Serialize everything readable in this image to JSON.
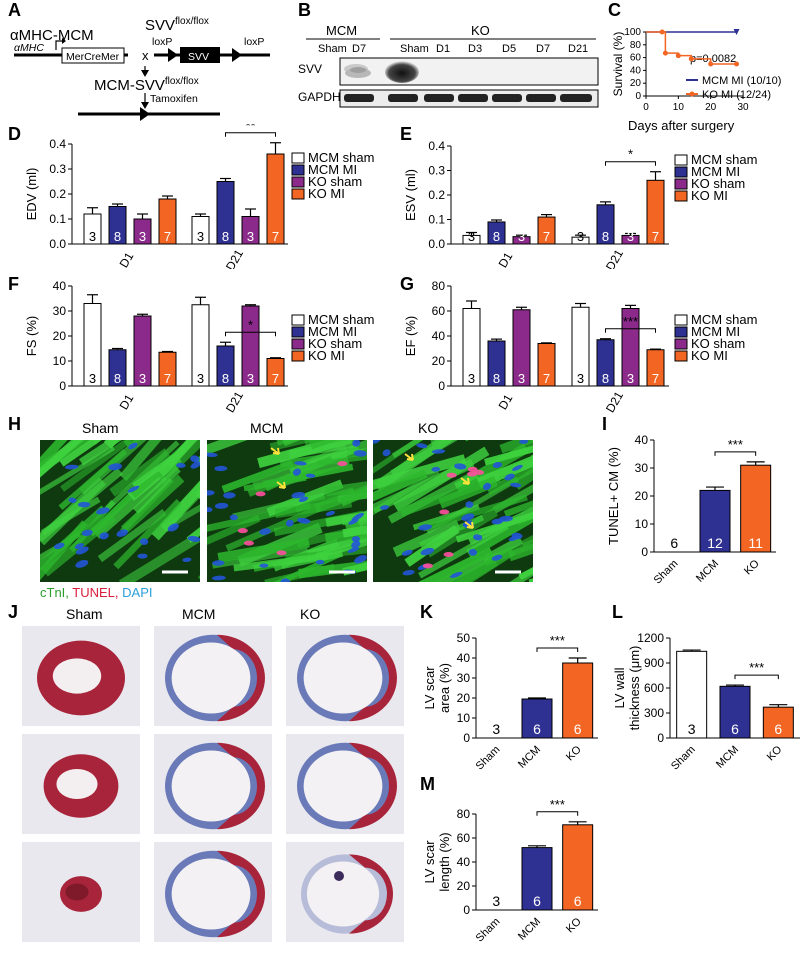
{
  "figure": {
    "panel_labels": [
      "A",
      "B",
      "C",
      "D",
      "E",
      "F",
      "G",
      "H",
      "I",
      "J",
      "K",
      "L",
      "M"
    ],
    "colors": {
      "mcm_sham": "#ffffff",
      "mcm_mi": "#2e3192",
      "ko_sham": "#8b2a8b",
      "ko_mi": "#f26522",
      "cardiac_green": "#2db82d",
      "tunel_red": "#e8224a",
      "dapi_blue": "#2255d8",
      "tissue_red": "#a8243a",
      "scar_blue": "#6a7ab8"
    }
  },
  "panelA": {
    "title": "αMHC-MCM",
    "promoter": "αMHC",
    "gene": "MerCreMer",
    "allele": "SVV",
    "allele_sup": "flox/flox",
    "cross": "x",
    "loxp_left": "loxP",
    "loxp_right": "loxP",
    "box": "SVV",
    "result": "MCM-SVV",
    "result_sup": "flox/flox",
    "drug": "Tamoxifen"
  },
  "panelB": {
    "group_mcm": "MCM",
    "group_ko": "KO",
    "lanes": [
      "Sham",
      "D7",
      "Sham",
      "D1",
      "D3",
      "D5",
      "D7",
      "D21"
    ],
    "rows": [
      "SVV",
      "GAPDH"
    ]
  },
  "panelC": {
    "ylabel": "Survival (%)",
    "xlabel": "Days after surgery",
    "yticks": [
      "0",
      "20",
      "40",
      "60",
      "80",
      "100"
    ],
    "xticks": [
      "0",
      "10",
      "20",
      "30"
    ],
    "pvalue": "p=0.0082",
    "legend": [
      "MCM MI (10/10)",
      "KO MI (12/24)"
    ]
  },
  "legend_groups": [
    "MCM sham",
    "MCM MI",
    "KO sham",
    "KO MI"
  ],
  "chart_data": [
    {
      "id": "D",
      "type": "bar",
      "ylabel": "EDV (ml)",
      "ylim": [
        0,
        0.4
      ],
      "yticks": [
        "0.0",
        "0.1",
        "0.2",
        "0.3",
        "0.4"
      ],
      "ytick_values": [
        0,
        0.1,
        0.2,
        0.3,
        0.4
      ],
      "categories": [
        "D1",
        "D21"
      ],
      "sig": "**",
      "sig_between": [
        1,
        3
      ],
      "series": [
        {
          "name": "MCM sham",
          "values": [
            0.12,
            0.11
          ],
          "err": [
            0.025,
            0.01
          ],
          "n": [
            "3",
            "3"
          ]
        },
        {
          "name": "MCM MI",
          "values": [
            0.15,
            0.25
          ],
          "err": [
            0.01,
            0.012
          ],
          "n": [
            "8",
            "8"
          ]
        },
        {
          "name": "KO sham",
          "values": [
            0.1,
            0.11
          ],
          "err": [
            0.02,
            0.03
          ],
          "n": [
            "3",
            "3"
          ]
        },
        {
          "name": "KO MI",
          "values": [
            0.18,
            0.36
          ],
          "err": [
            0.012,
            0.045
          ],
          "n": [
            "7",
            "7"
          ]
        }
      ]
    },
    {
      "id": "E",
      "type": "bar",
      "ylabel": "ESV (ml)",
      "ylim": [
        0,
        0.4
      ],
      "yticks": [
        "0.0",
        "0.1",
        "0.2",
        "0.3",
        "0.4"
      ],
      "ytick_values": [
        0,
        0.1,
        0.2,
        0.3,
        0.4
      ],
      "categories": [
        "D1",
        "D21"
      ],
      "sig": "*",
      "sig_between": [
        1,
        3
      ],
      "series": [
        {
          "name": "MCM sham",
          "values": [
            0.035,
            0.028
          ],
          "err": [
            0.012,
            0.008
          ],
          "n": [
            "3",
            "3"
          ]
        },
        {
          "name": "MCM MI",
          "values": [
            0.09,
            0.16
          ],
          "err": [
            0.008,
            0.012
          ],
          "n": [
            "8",
            "8"
          ]
        },
        {
          "name": "KO sham",
          "values": [
            0.03,
            0.035
          ],
          "err": [
            0.006,
            0.008
          ],
          "n": [
            "3",
            "3"
          ]
        },
        {
          "name": "KO MI",
          "values": [
            0.11,
            0.26
          ],
          "err": [
            0.01,
            0.035
          ],
          "n": [
            "7",
            "7"
          ]
        }
      ]
    },
    {
      "id": "F",
      "type": "bar",
      "ylabel": "FS (%)",
      "ylim": [
        0,
        40
      ],
      "yticks": [
        "0",
        "10",
        "20",
        "30",
        "40"
      ],
      "ytick_values": [
        0,
        10,
        20,
        30,
        40
      ],
      "categories": [
        "D1",
        "D21"
      ],
      "sig": "*",
      "sig_between": [
        1,
        3
      ],
      "series": [
        {
          "name": "MCM sham",
          "values": [
            33,
            32.5
          ],
          "err": [
            3.5,
            3
          ],
          "n": [
            "3",
            "3"
          ]
        },
        {
          "name": "MCM MI",
          "values": [
            14.5,
            16
          ],
          "err": [
            0.5,
            1.5
          ],
          "n": [
            "8",
            "8"
          ]
        },
        {
          "name": "KO sham",
          "values": [
            28,
            32
          ],
          "err": [
            0.7,
            0.5
          ],
          "n": [
            "3",
            "3"
          ]
        },
        {
          "name": "KO MI",
          "values": [
            13.5,
            11
          ],
          "err": [
            0.3,
            0.3
          ],
          "n": [
            "7",
            "7"
          ]
        }
      ]
    },
    {
      "id": "G",
      "type": "bar",
      "ylabel": "EF (%)",
      "ylim": [
        0,
        80
      ],
      "yticks": [
        "0",
        "20",
        "40",
        "60",
        "80"
      ],
      "ytick_values": [
        0,
        20,
        40,
        60,
        80
      ],
      "categories": [
        "D1",
        "D21"
      ],
      "sig": "***",
      "sig_between": [
        1,
        3
      ],
      "series": [
        {
          "name": "MCM sham",
          "values": [
            62,
            63
          ],
          "err": [
            6,
            3
          ],
          "n": [
            "3",
            "3"
          ]
        },
        {
          "name": "MCM MI",
          "values": [
            36,
            37
          ],
          "err": [
            1.5,
            0.8
          ],
          "n": [
            "8",
            "8"
          ]
        },
        {
          "name": "KO sham",
          "values": [
            61,
            62
          ],
          "err": [
            2,
            2.5
          ],
          "n": [
            "3",
            "3"
          ]
        },
        {
          "name": "KO MI",
          "values": [
            34,
            29
          ],
          "err": [
            0.5,
            0.5
          ],
          "n": [
            "7",
            "7"
          ]
        }
      ]
    },
    {
      "id": "I",
      "type": "bar",
      "ylabel": "TUNEL+ CM (%)",
      "ylim": [
        0,
        40
      ],
      "yticks": [
        "0",
        "10",
        "20",
        "30",
        "40"
      ],
      "ytick_values": [
        0,
        10,
        20,
        30,
        40
      ],
      "categories": [
        "Sham",
        "MCM",
        "KO"
      ],
      "sig": "***",
      "sig_between": [
        1,
        2
      ],
      "values": [
        0,
        22,
        31
      ],
      "err": [
        0,
        1.2,
        1.2
      ],
      "n": [
        "6",
        "12",
        "11"
      ]
    },
    {
      "id": "K",
      "type": "bar",
      "ylabel": "LV scar area (%)",
      "ylim": [
        0,
        50
      ],
      "yticks": [
        "0",
        "10",
        "20",
        "30",
        "40",
        "50"
      ],
      "ytick_values": [
        0,
        10,
        20,
        30,
        40,
        50
      ],
      "categories": [
        "Sham",
        "MCM",
        "KO"
      ],
      "sig": "***",
      "sig_between": [
        1,
        2
      ],
      "values": [
        0,
        19.5,
        37.5
      ],
      "err": [
        0,
        0.5,
        2.5
      ],
      "n": [
        "3",
        "6",
        "6"
      ]
    },
    {
      "id": "L",
      "type": "bar",
      "ylabel": "LV wall thickness (μm)",
      "ylim": [
        0,
        1200
      ],
      "yticks": [
        "0",
        "300",
        "600",
        "900",
        "1200"
      ],
      "ytick_values": [
        0,
        300,
        600,
        900,
        1200
      ],
      "categories": [
        "Sham",
        "MCM",
        "KO"
      ],
      "sig": "***",
      "sig_between": [
        1,
        2
      ],
      "values": [
        1040,
        620,
        370
      ],
      "err": [
        15,
        15,
        30
      ],
      "n": [
        "3",
        "6",
        "6"
      ]
    },
    {
      "id": "M",
      "type": "bar",
      "ylabel": "LV scar length (%)",
      "ylim": [
        0,
        80
      ],
      "yticks": [
        "0",
        "20",
        "40",
        "60",
        "80"
      ],
      "ytick_values": [
        0,
        20,
        40,
        60,
        80
      ],
      "categories": [
        "Sham",
        "MCM",
        "KO"
      ],
      "sig": "***",
      "sig_between": [
        1,
        2
      ],
      "values": [
        0,
        52,
        71
      ],
      "err": [
        0,
        1.5,
        2.5
      ],
      "n": [
        "3",
        "6",
        "6"
      ]
    }
  ],
  "survival": {
    "mcm": {
      "x": [
        0,
        28
      ],
      "y": [
        100,
        100
      ]
    },
    "ko": {
      "x": [
        0,
        5,
        6,
        10,
        14,
        20,
        28
      ],
      "y": [
        100,
        100,
        67,
        63,
        58,
        50,
        50
      ]
    }
  },
  "panelH": {
    "titles": [
      "Sham",
      "MCM",
      "KO"
    ],
    "stain_labels": [
      "cTnI,",
      "TUNEL,",
      "DAPI"
    ]
  },
  "panelJ": {
    "titles": [
      "Sham",
      "MCM",
      "KO"
    ]
  }
}
